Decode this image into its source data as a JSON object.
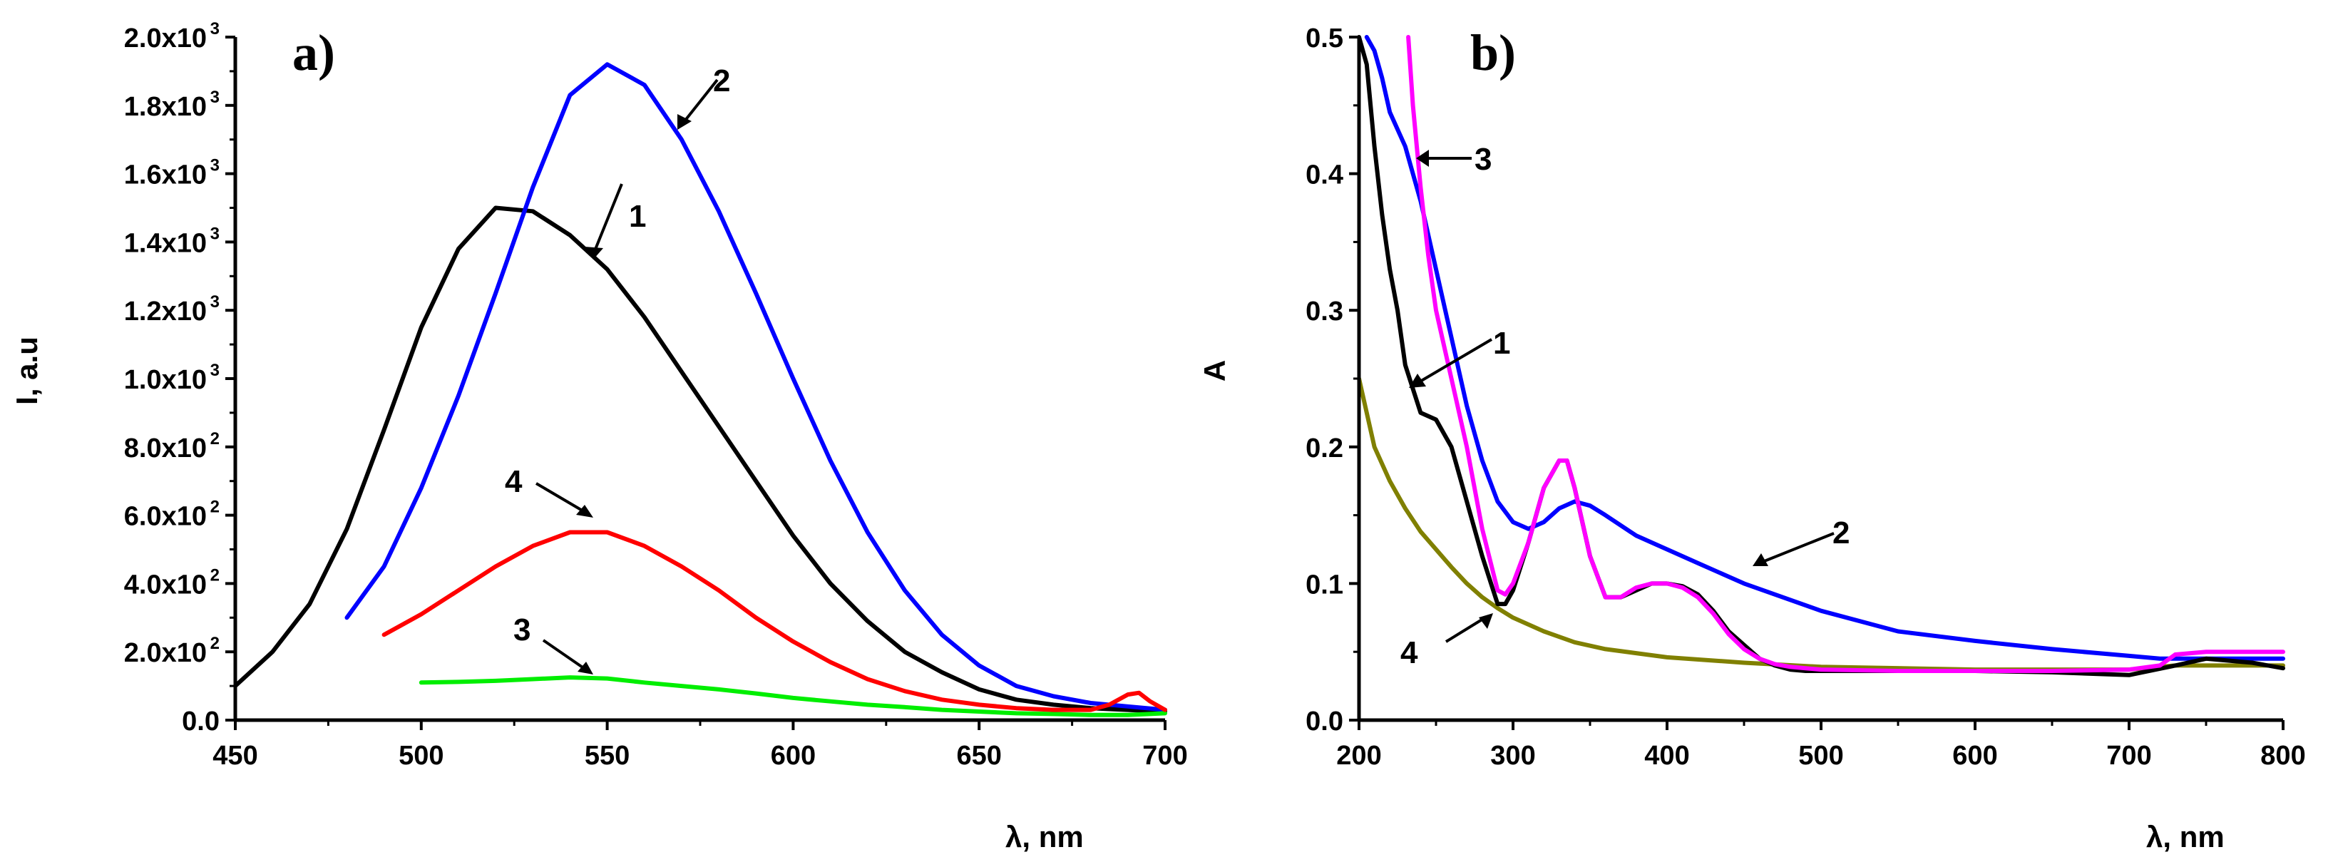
{
  "chart_data": [
    {
      "panel_label": "a)",
      "type": "line",
      "xlabel": "λ, nm",
      "ylabel": "I, a.u",
      "xlim": [
        450,
        700
      ],
      "ylim": [
        0,
        2000
      ],
      "xticks": [
        450,
        500,
        550,
        600,
        650,
        700
      ],
      "yticks": [
        {
          "mant": "0.0",
          "exp": ""
        },
        {
          "mant": "2.0x10",
          "exp": "2"
        },
        {
          "mant": "4.0x10",
          "exp": "2"
        },
        {
          "mant": "6.0x10",
          "exp": "2"
        },
        {
          "mant": "8.0x10",
          "exp": "2"
        },
        {
          "mant": "1.0x10",
          "exp": "3"
        },
        {
          "mant": "1.2x10",
          "exp": "3"
        },
        {
          "mant": "1.4x10",
          "exp": "3"
        },
        {
          "mant": "1.6x10",
          "exp": "3"
        },
        {
          "mant": "1.8x10",
          "exp": "3"
        },
        {
          "mant": "2.0x10",
          "exp": "3"
        }
      ],
      "series": [
        {
          "name": "1",
          "color": "#000000",
          "x": [
            450,
            460,
            470,
            480,
            490,
            500,
            510,
            520,
            530,
            540,
            550,
            560,
            570,
            580,
            590,
            600,
            610,
            620,
            630,
            640,
            650,
            660,
            670,
            680,
            690,
            700
          ],
          "y": [
            100,
            200,
            340,
            560,
            850,
            1150,
            1380,
            1500,
            1490,
            1420,
            1320,
            1180,
            1020,
            860,
            700,
            540,
            400,
            290,
            200,
            140,
            90,
            60,
            45,
            35,
            30,
            25
          ]
        },
        {
          "name": "2",
          "color": "#0000ff",
          "x": [
            480,
            490,
            500,
            510,
            520,
            530,
            540,
            550,
            560,
            570,
            580,
            590,
            600,
            610,
            620,
            630,
            640,
            650,
            660,
            670,
            680,
            690,
            700
          ],
          "y": [
            300,
            450,
            680,
            950,
            1250,
            1560,
            1830,
            1920,
            1860,
            1700,
            1490,
            1250,
            1000,
            760,
            550,
            380,
            250,
            160,
            100,
            70,
            50,
            40,
            30
          ]
        },
        {
          "name": "3",
          "color": "#00ee00",
          "x": [
            500,
            510,
            520,
            530,
            540,
            550,
            560,
            570,
            580,
            590,
            600,
            610,
            620,
            630,
            640,
            650,
            660,
            670,
            680,
            690,
            700
          ],
          "y": [
            110,
            112,
            115,
            120,
            125,
            122,
            110,
            100,
            90,
            78,
            65,
            55,
            45,
            38,
            30,
            25,
            20,
            18,
            15,
            15,
            20
          ]
        },
        {
          "name": "4",
          "color": "#ff0000",
          "x": [
            490,
            500,
            510,
            520,
            530,
            540,
            550,
            560,
            570,
            580,
            590,
            600,
            610,
            620,
            630,
            640,
            650,
            660,
            670,
            680,
            685,
            690,
            693,
            696,
            700
          ],
          "y": [
            250,
            310,
            380,
            450,
            510,
            550,
            550,
            510,
            450,
            380,
            300,
            230,
            170,
            120,
            85,
            60,
            45,
            35,
            30,
            30,
            45,
            75,
            80,
            55,
            30
          ]
        }
      ],
      "annotations": [
        "1",
        "2",
        "3",
        "4"
      ]
    },
    {
      "panel_label": "b)",
      "type": "line",
      "xlabel": "λ, nm",
      "ylabel": "A",
      "xlim": [
        200,
        800
      ],
      "ylim": [
        0,
        0.5
      ],
      "xticks": [
        200,
        300,
        400,
        500,
        600,
        700,
        800
      ],
      "yticks": [
        {
          "mant": "0.0",
          "exp": ""
        },
        {
          "mant": "0.1",
          "exp": ""
        },
        {
          "mant": "0.2",
          "exp": ""
        },
        {
          "mant": "0.3",
          "exp": ""
        },
        {
          "mant": "0.4",
          "exp": ""
        },
        {
          "mant": "0.5",
          "exp": ""
        }
      ],
      "series": [
        {
          "name": "4",
          "color": "#808000",
          "x": [
            200,
            210,
            220,
            230,
            240,
            250,
            260,
            270,
            280,
            290,
            300,
            320,
            340,
            360,
            380,
            400,
            450,
            500,
            600,
            700,
            730,
            800
          ],
          "y": [
            0.25,
            0.2,
            0.175,
            0.155,
            0.138,
            0.125,
            0.112,
            0.1,
            0.09,
            0.082,
            0.075,
            0.065,
            0.057,
            0.052,
            0.049,
            0.046,
            0.042,
            0.039,
            0.037,
            0.037,
            0.04,
            0.04
          ]
        },
        {
          "name": "2",
          "color": "#0000ff",
          "x": [
            205,
            210,
            215,
            220,
            230,
            240,
            250,
            260,
            270,
            280,
            290,
            300,
            310,
            320,
            330,
            340,
            350,
            360,
            380,
            400,
            420,
            450,
            500,
            550,
            600,
            650,
            700,
            720,
            740,
            760,
            800
          ],
          "y": [
            0.5,
            0.49,
            0.47,
            0.445,
            0.42,
            0.38,
            0.33,
            0.28,
            0.23,
            0.19,
            0.16,
            0.145,
            0.14,
            0.145,
            0.155,
            0.16,
            0.157,
            0.15,
            0.135,
            0.125,
            0.115,
            0.1,
            0.08,
            0.065,
            0.058,
            0.052,
            0.047,
            0.045,
            0.045,
            0.045,
            0.045
          ]
        },
        {
          "name": "1",
          "color": "#000000",
          "x": [
            200,
            205,
            210,
            215,
            220,
            225,
            230,
            240,
            250,
            260,
            270,
            280,
            290,
            295,
            300,
            310,
            320,
            330,
            335,
            340,
            350,
            360,
            370,
            380,
            390,
            400,
            410,
            420,
            430,
            440,
            450,
            460,
            470,
            480,
            490,
            500,
            520,
            550,
            600,
            650,
            700,
            730,
            750,
            780,
            800
          ],
          "y": [
            0.5,
            0.48,
            0.42,
            0.37,
            0.33,
            0.3,
            0.26,
            0.225,
            0.22,
            0.2,
            0.16,
            0.12,
            0.085,
            0.085,
            0.095,
            0.13,
            0.17,
            0.19,
            0.19,
            0.17,
            0.12,
            0.09,
            0.09,
            0.095,
            0.1,
            0.1,
            0.098,
            0.092,
            0.08,
            0.065,
            0.055,
            0.045,
            0.04,
            0.037,
            0.036,
            0.036,
            0.036,
            0.036,
            0.036,
            0.035,
            0.033,
            0.04,
            0.045,
            0.042,
            0.038
          ]
        },
        {
          "name": "3",
          "color": "#ff00ff",
          "x": [
            232,
            235,
            240,
            245,
            250,
            260,
            270,
            280,
            290,
            295,
            300,
            310,
            320,
            330,
            335,
            340,
            350,
            360,
            370,
            380,
            390,
            400,
            410,
            420,
            430,
            440,
            450,
            460,
            470,
            480,
            490,
            500,
            550,
            600,
            650,
            700,
            720,
            730,
            750,
            800
          ],
          "y": [
            0.5,
            0.45,
            0.39,
            0.34,
            0.3,
            0.25,
            0.2,
            0.14,
            0.095,
            0.092,
            0.1,
            0.13,
            0.17,
            0.19,
            0.19,
            0.17,
            0.12,
            0.09,
            0.09,
            0.097,
            0.1,
            0.1,
            0.097,
            0.09,
            0.078,
            0.063,
            0.052,
            0.045,
            0.041,
            0.039,
            0.038,
            0.037,
            0.036,
            0.036,
            0.036,
            0.037,
            0.04,
            0.048,
            0.05,
            0.05
          ]
        }
      ],
      "annotations": [
        "1",
        "2",
        "3",
        "4"
      ]
    }
  ]
}
